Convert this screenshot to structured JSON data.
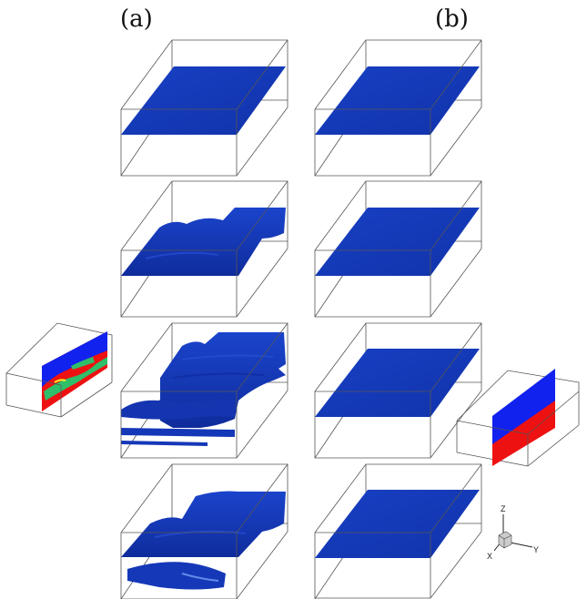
{
  "columns": [
    {
      "label": "(a)"
    },
    {
      "label": "(b)"
    }
  ],
  "colors": {
    "interface": "#1638b8",
    "interface_dark": "#0c2494",
    "slice_top": "#1122ee",
    "slice_bottom": "#ee1111",
    "slice_mix": "#2fbf6a",
    "box_line": "#555555"
  },
  "axes_triad": {
    "z": "Z",
    "x": "X",
    "y": "Y"
  }
}
